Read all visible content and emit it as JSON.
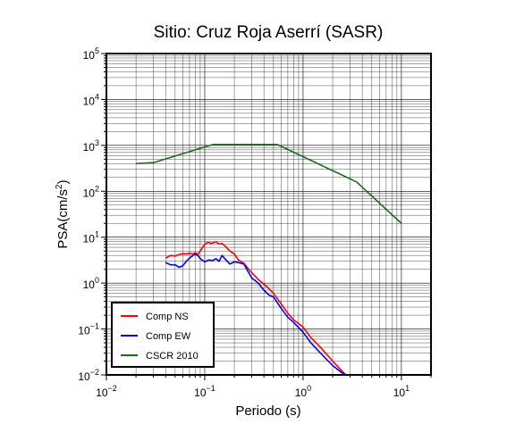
{
  "chart_data": {
    "type": "line",
    "title": "Sitio: Cruz Roja Aserrí (SASR)",
    "xlabel": "Periodo (s)",
    "ylabel_base": "PSA(cm/s",
    "ylabel_sup": "2",
    "ylabel_tail": ")",
    "xscale": "log",
    "yscale": "log",
    "xlim": [
      0.01,
      20
    ],
    "ylim": [
      0.01,
      100000
    ],
    "grid": true,
    "legend_position": "bottom-left",
    "x_ticks": [
      {
        "base": "10",
        "exp": "−2",
        "value": 0.01
      },
      {
        "base": "10",
        "exp": "−1",
        "value": 0.1
      },
      {
        "base": "10",
        "exp": "0",
        "value": 1
      },
      {
        "base": "10",
        "exp": "1",
        "value": 10
      }
    ],
    "y_ticks": [
      {
        "base": "10",
        "exp": "−2",
        "value": 0.01
      },
      {
        "base": "10",
        "exp": "−1",
        "value": 0.1
      },
      {
        "base": "10",
        "exp": "0",
        "value": 1
      },
      {
        "base": "10",
        "exp": "1",
        "value": 10
      },
      {
        "base": "10",
        "exp": "2",
        "value": 100
      },
      {
        "base": "10",
        "exp": "3",
        "value": 1000
      },
      {
        "base": "10",
        "exp": "4",
        "value": 10000
      },
      {
        "base": "10",
        "exp": "5",
        "value": 100000
      }
    ],
    "series": [
      {
        "name": "Comp NS",
        "color": "#ff0000",
        "points": [
          [
            0.04,
            3.5
          ],
          [
            0.045,
            4.0
          ],
          [
            0.05,
            3.9
          ],
          [
            0.055,
            4.2
          ],
          [
            0.06,
            4.4
          ],
          [
            0.065,
            4.3
          ],
          [
            0.07,
            4.5
          ],
          [
            0.075,
            4.3
          ],
          [
            0.08,
            4.6
          ],
          [
            0.085,
            4.2
          ],
          [
            0.09,
            5.0
          ],
          [
            0.095,
            6.0
          ],
          [
            0.1,
            7.0
          ],
          [
            0.105,
            7.5
          ],
          [
            0.11,
            7.8
          ],
          [
            0.115,
            7.3
          ],
          [
            0.12,
            7.5
          ],
          [
            0.13,
            7.9
          ],
          [
            0.14,
            7.1
          ],
          [
            0.15,
            7.3
          ],
          [
            0.16,
            6.5
          ],
          [
            0.18,
            5.0
          ],
          [
            0.2,
            4.3
          ],
          [
            0.22,
            3.2
          ],
          [
            0.25,
            2.7
          ],
          [
            0.28,
            2.0
          ],
          [
            0.3,
            1.7
          ],
          [
            0.35,
            1.2
          ],
          [
            0.4,
            0.95
          ],
          [
            0.45,
            0.75
          ],
          [
            0.5,
            0.6
          ],
          [
            0.6,
            0.35
          ],
          [
            0.7,
            0.22
          ],
          [
            0.8,
            0.16
          ],
          [
            1.0,
            0.11
          ],
          [
            1.2,
            0.065
          ],
          [
            1.5,
            0.04
          ],
          [
            2.0,
            0.02
          ],
          [
            2.5,
            0.012
          ],
          [
            2.8,
            0.0095
          ]
        ]
      },
      {
        "name": "Comp EW",
        "color": "#0000ff",
        "points": [
          [
            0.04,
            2.8
          ],
          [
            0.045,
            2.5
          ],
          [
            0.05,
            2.5
          ],
          [
            0.055,
            2.2
          ],
          [
            0.06,
            2.4
          ],
          [
            0.065,
            3.0
          ],
          [
            0.07,
            3.5
          ],
          [
            0.075,
            3.9
          ],
          [
            0.08,
            4.3
          ],
          [
            0.085,
            4.0
          ],
          [
            0.09,
            3.4
          ],
          [
            0.1,
            2.9
          ],
          [
            0.11,
            3.2
          ],
          [
            0.12,
            3.1
          ],
          [
            0.13,
            3.4
          ],
          [
            0.14,
            3.0
          ],
          [
            0.15,
            4.0
          ],
          [
            0.16,
            3.4
          ],
          [
            0.18,
            2.6
          ],
          [
            0.2,
            2.9
          ],
          [
            0.22,
            2.8
          ],
          [
            0.25,
            2.6
          ],
          [
            0.3,
            1.3
          ],
          [
            0.35,
            1.0
          ],
          [
            0.4,
            0.7
          ],
          [
            0.45,
            0.55
          ],
          [
            0.5,
            0.5
          ],
          [
            0.6,
            0.28
          ],
          [
            0.7,
            0.18
          ],
          [
            0.8,
            0.14
          ],
          [
            1.0,
            0.085
          ],
          [
            1.2,
            0.05
          ],
          [
            1.5,
            0.03
          ],
          [
            2.0,
            0.016
          ],
          [
            2.5,
            0.011
          ],
          [
            2.8,
            0.0095
          ]
        ]
      },
      {
        "name": "CSCR 2010",
        "color": "#1a6b1a",
        "points": [
          [
            0.02,
            400
          ],
          [
            0.03,
            420
          ],
          [
            0.12,
            1040
          ],
          [
            0.55,
            1040
          ],
          [
            3.5,
            160
          ],
          [
            10,
            20
          ]
        ]
      }
    ]
  }
}
